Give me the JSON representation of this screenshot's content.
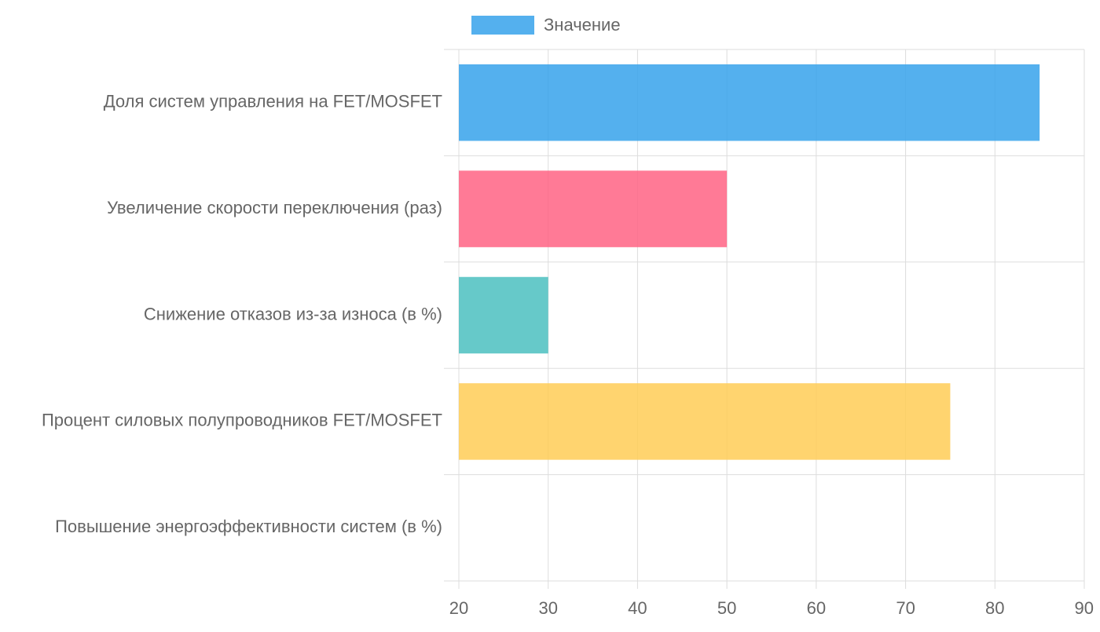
{
  "chart_data": {
    "type": "bar",
    "orientation": "horizontal",
    "title": "",
    "xlabel": "",
    "ylabel": "",
    "xlim": [
      20,
      90
    ],
    "x_ticks": [
      20,
      30,
      40,
      50,
      60,
      70,
      80,
      90
    ],
    "grid": true,
    "legend_position": "top",
    "categories": [
      "Доля систем управления на FET/MOSFET",
      "Увеличение скорости переключения (раз)",
      "Снижение отказов из-за износа (в %)",
      "Процент силовых полупроводников FET/MOSFET",
      "Повышение энергоэффективности систем (в %)"
    ],
    "series": [
      {
        "name": "Значение",
        "values": [
          85,
          50,
          30,
          75,
          20
        ],
        "colors": [
          "#36a2eb",
          "#ff6384",
          "#4bc0c0",
          "#ffcd56",
          "#9966ff"
        ]
      }
    ],
    "legend_color": "#36a2eb",
    "grid_color": "#dddddd",
    "text_color": "#666666"
  }
}
